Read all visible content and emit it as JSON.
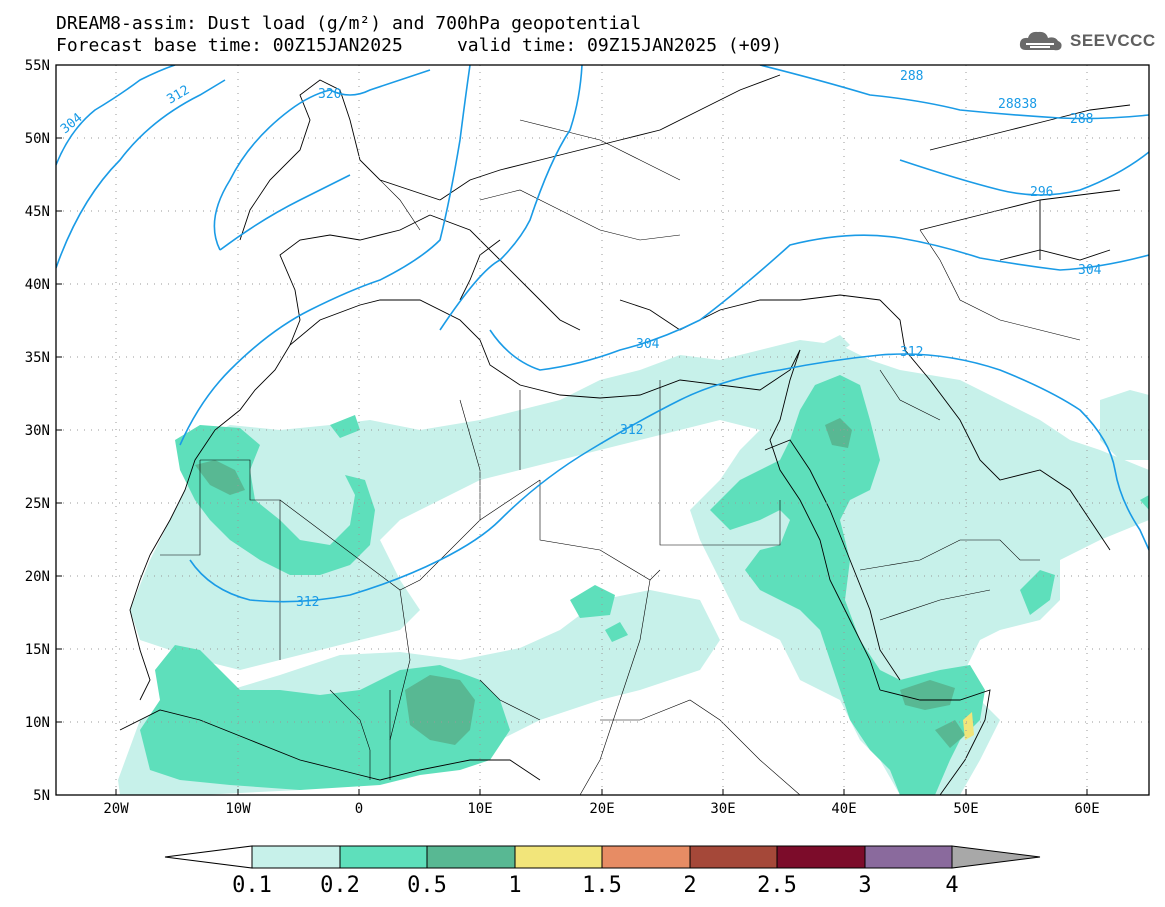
{
  "title": {
    "line1": "DREAM8-assim: Dust load (g/m²) and 700hPa geopotential",
    "line2": "Forecast base time: 00Z15JAN2025     valid time: 09Z15JAN2025 (+09)"
  },
  "logo": {
    "text": "SEEVCCC",
    "icon": "cloud-icon"
  },
  "axes": {
    "lat_labels": [
      "55N",
      "50N",
      "45N",
      "40N",
      "35N",
      "30N",
      "25N",
      "20N",
      "15N",
      "10N",
      "5N"
    ],
    "lon_labels": [
      "20W",
      "10W",
      "0",
      "10E",
      "20E",
      "30E",
      "40E",
      "50E",
      "60E"
    ]
  },
  "contours": {
    "labels": [
      "304",
      "312",
      "320",
      "288",
      "28838",
      "288",
      "296",
      "304",
      "304",
      "312",
      "312",
      "312"
    ]
  },
  "colorbar": {
    "labels": [
      "0.1",
      "0.2",
      "0.5",
      "1",
      "1.5",
      "2",
      "2.5",
      "3",
      "4"
    ],
    "colors": [
      "#ffffff",
      "#c7f1ea",
      "#5edfbb",
      "#58b893",
      "#f2e57a",
      "#e78c64",
      "#a54839",
      "#7c0c2a",
      "#8a6a9d",
      "#a8a8a8"
    ]
  },
  "colors": {
    "dust_01": "#c7f1ea",
    "dust_02": "#5edfbb",
    "dust_05": "#58b893",
    "dust_1": "#f2e57a",
    "contour": "#1a9be6"
  }
}
